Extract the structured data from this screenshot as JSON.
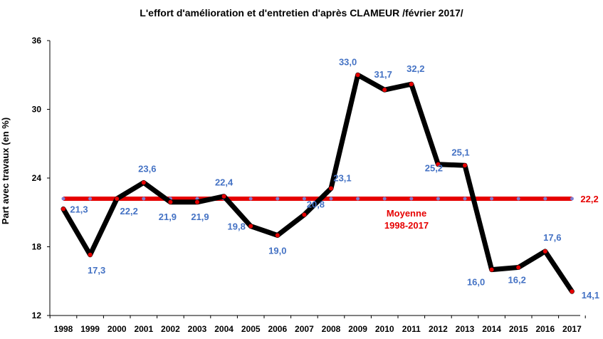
{
  "chart_data": {
    "type": "line",
    "title": "L'effort d'amélioration et d'entretien d'après CLAMEUR /février 2017/",
    "ylabel": "Part avec travaux (en %)",
    "xlabel": "",
    "ylim": [
      12,
      36
    ],
    "yticks": [
      "12",
      "18",
      "24",
      "30",
      "36"
    ],
    "grid": false,
    "categories": [
      "1998",
      "1999",
      "2000",
      "2001",
      "2002",
      "2003",
      "2004",
      "2005",
      "2006",
      "2007",
      "2008",
      "2009",
      "2010",
      "2011",
      "2012",
      "2013",
      "2014",
      "2015",
      "2016",
      "2017"
    ],
    "series": [
      {
        "values": [
          21.3,
          17.3,
          22.2,
          23.6,
          21.9,
          21.9,
          22.4,
          19.8,
          19.0,
          20.8,
          23.1,
          33.0,
          31.7,
          32.2,
          25.2,
          25.1,
          16.0,
          16.2,
          17.6,
          14.1
        ],
        "labels": [
          "21,3",
          "17,3",
          "22,2",
          "23,6",
          "21,9",
          "21,9",
          "22,4",
          "19,8",
          "19,0",
          "20,8",
          "23,1",
          "33,0",
          "31,7",
          "32,2",
          "25,2",
          "25,1",
          "16,0",
          "16,2",
          "17,6",
          "14,1"
        ],
        "color": "#000000",
        "marker_color": "#E60000"
      }
    ],
    "average": {
      "value": 22.2,
      "label": "22,2",
      "text_line1": "Moyenne",
      "text_line2": "1998-2017",
      "color": "#E60000",
      "marker_color": "#7F7FD0"
    },
    "label_color": "#4472C4"
  }
}
